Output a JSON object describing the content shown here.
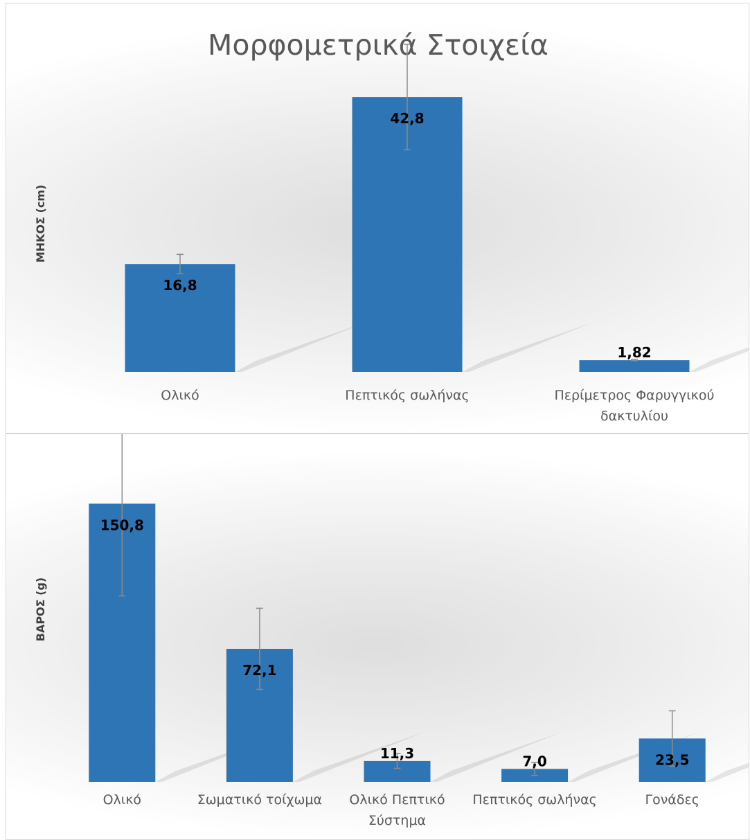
{
  "chart_data": [
    {
      "type": "bar",
      "title": "Μορφομετρικά Στοιχεία",
      "ylabel": "ΜΗΚΟΣ (cm)",
      "categories": [
        "Ολικό",
        "Πεπτικός σωλήνας",
        "Περίμετρος Φαρυγγικού δακτυλίου"
      ],
      "category_lines": [
        [
          "Ολικό"
        ],
        [
          "Πεπτικός σωλήνας"
        ],
        [
          "Περίμετρος Φαρυγγικού",
          "δακτυλίου"
        ]
      ],
      "values": [
        16.8,
        42.8,
        1.82
      ],
      "data_labels": [
        "16,8",
        "42,8",
        "1,82"
      ],
      "error": [
        1.5,
        8.2,
        0.1
      ],
      "ylim": [
        0,
        55
      ],
      "color": "#2e75b6",
      "grid": false,
      "legend": "none"
    },
    {
      "type": "bar",
      "title": "",
      "ylabel": "ΒΑΡΟΣ (g)",
      "categories": [
        "Ολικό",
        "Σωματικό τοίχωμα",
        "Ολικό Πεπτικό Σύστημα",
        "Πεπτικός σωλήνας",
        "Γονάδες"
      ],
      "category_lines": [
        [
          "Ολικό"
        ],
        [
          "Σωματικό τοίχωμα"
        ],
        [
          "Ολικό Πεπτικό",
          "Σύστημα"
        ],
        [
          "Πεπτικός σωλήνας"
        ],
        [
          "Γονάδες"
        ]
      ],
      "values": [
        150.8,
        72.1,
        11.3,
        7.0,
        23.5
      ],
      "data_labels": [
        "150,8",
        "72,1",
        "11,3",
        "7,0",
        "23,5"
      ],
      "error": [
        50.0,
        22.0,
        4.0,
        3.5,
        15.0
      ],
      "ylim": [
        0,
        205
      ],
      "color": "#2e75b6",
      "grid": false,
      "legend": "none"
    }
  ]
}
